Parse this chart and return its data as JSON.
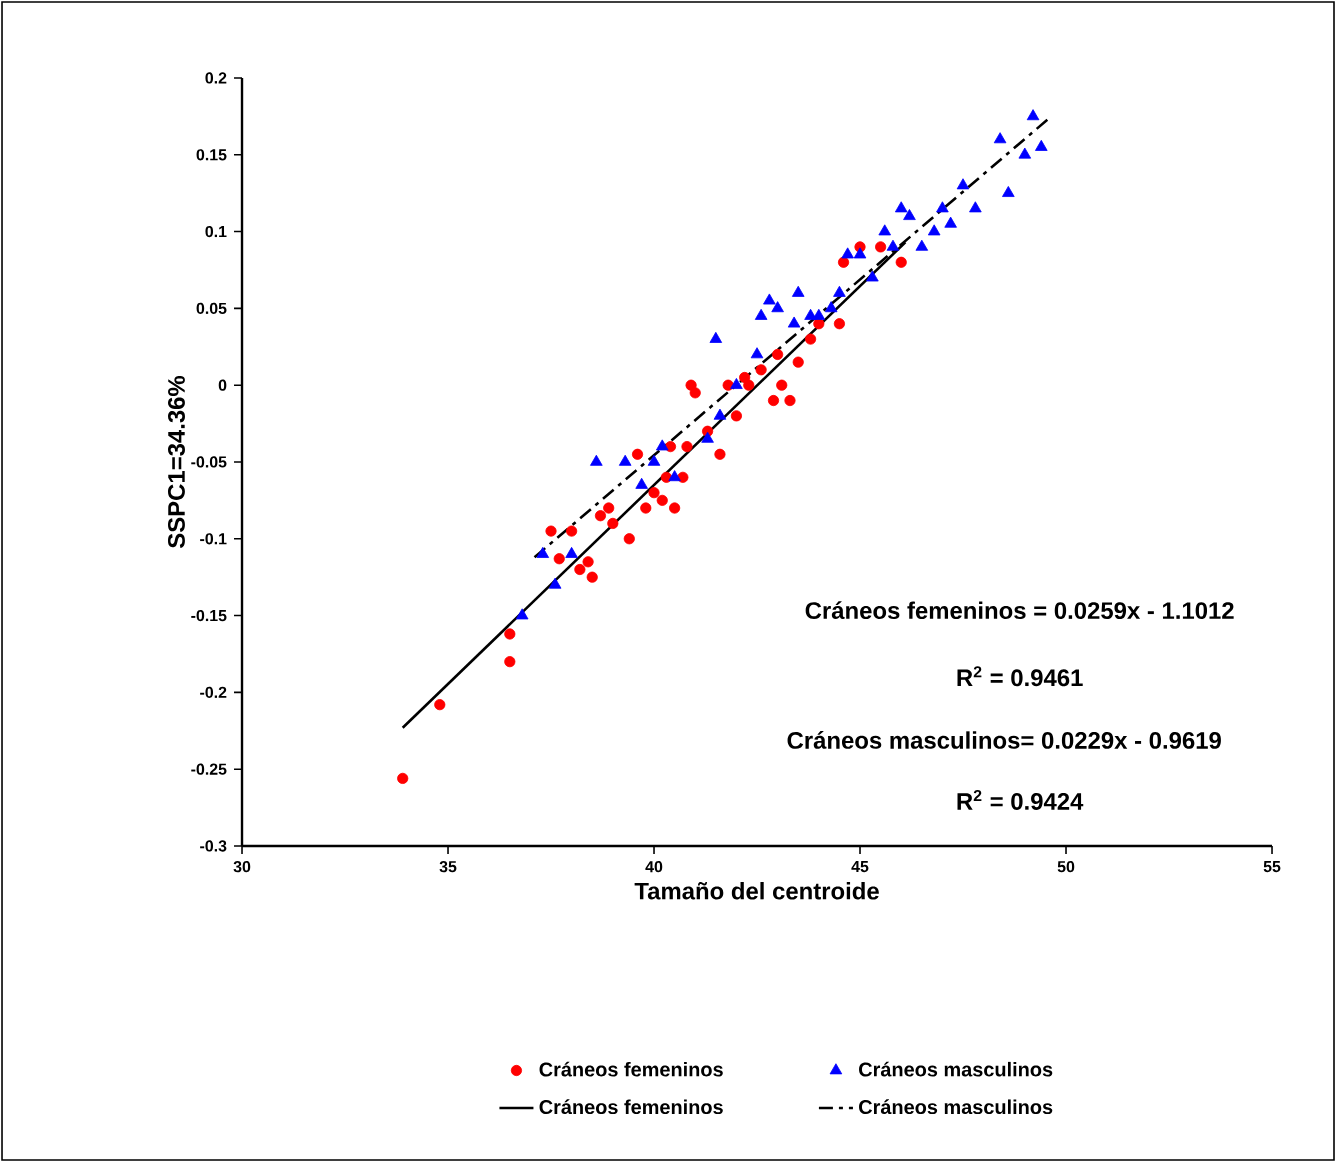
{
  "chart_data": {
    "type": "scatter",
    "xlabel": "Tamaño del centroide",
    "ylabel": "SSPC1=34.36%",
    "xlim": [
      30,
      55
    ],
    "xticks": [
      30,
      35,
      40,
      45,
      50,
      55
    ],
    "ylim": [
      -0.3,
      0.2
    ],
    "yticks": [
      -0.3,
      -0.25,
      -0.2,
      -0.15,
      -0.1,
      -0.05,
      0,
      0.05,
      0.1,
      0.15,
      0.2
    ],
    "grid": false,
    "legend": "bottom",
    "annotations": [
      "Cráneos femeninos = 0.0259x - 1.1012",
      "R$^{2}$ = 0.9461",
      "Cráneos masculinos= 0.0229x - 0.9619",
      "R$^{2}$ = 0.9424"
    ],
    "series": [
      {
        "name": "Cráneos femeninos",
        "type": "scatter",
        "color": "#ff0000",
        "marker": "circle",
        "x": [
          33.9,
          34.8,
          36.5,
          36.5,
          37.5,
          37.7,
          38.0,
          38.2,
          38.4,
          38.5,
          38.7,
          38.9,
          39.0,
          39.4,
          39.6,
          39.8,
          40.0,
          40.2,
          40.3,
          40.5,
          40.7,
          40.8,
          40.9,
          41.0,
          41.3,
          41.6,
          41.8,
          42.0,
          42.2,
          42.6,
          42.9,
          43.0,
          43.3,
          43.5,
          43.8,
          44.0,
          44.5,
          44.6,
          45.0,
          45.5,
          46.0,
          42.3,
          40.4,
          43.1
        ],
        "values": [
          -0.256,
          -0.208,
          -0.162,
          -0.18,
          -0.095,
          -0.113,
          -0.095,
          -0.12,
          -0.115,
          -0.125,
          -0.085,
          -0.08,
          -0.09,
          -0.1,
          -0.045,
          -0.08,
          -0.07,
          -0.075,
          -0.06,
          -0.08,
          -0.06,
          -0.04,
          0.0,
          -0.005,
          -0.03,
          -0.045,
          0.0,
          -0.02,
          0.005,
          0.01,
          -0.01,
          0.02,
          -0.01,
          0.015,
          0.03,
          0.04,
          0.04,
          0.08,
          0.09,
          0.09,
          0.08,
          0.0,
          -0.04,
          0.0
        ]
      },
      {
        "name": "Cráneos masculinos",
        "type": "scatter",
        "color": "#0000ff",
        "marker": "triangle",
        "x": [
          37.3,
          36.8,
          37.6,
          38.0,
          38.6,
          39.3,
          39.7,
          40.2,
          40.0,
          40.5,
          41.3,
          41.5,
          41.6,
          42.0,
          42.5,
          42.6,
          42.8,
          43.0,
          43.4,
          43.5,
          43.8,
          44.0,
          44.3,
          44.5,
          44.7,
          45.0,
          45.3,
          45.6,
          45.8,
          46.0,
          46.2,
          46.5,
          46.8,
          47.0,
          47.2,
          47.5,
          47.8,
          48.4,
          48.6,
          49.0,
          49.2,
          49.4
        ],
        "values": [
          -0.11,
          -0.15,
          -0.13,
          -0.11,
          -0.05,
          -0.05,
          -0.065,
          -0.04,
          -0.05,
          -0.06,
          -0.035,
          0.03,
          -0.02,
          0.0,
          0.02,
          0.045,
          0.055,
          0.05,
          0.04,
          0.06,
          0.045,
          0.045,
          0.05,
          0.06,
          0.085,
          0.085,
          0.07,
          0.1,
          0.09,
          0.115,
          0.11,
          0.09,
          0.1,
          0.115,
          0.105,
          0.13,
          0.115,
          0.16,
          0.125,
          0.15,
          0.175,
          0.155
        ]
      },
      {
        "name": "Cráneos femeninos",
        "type": "line",
        "color": "#000000",
        "marker": "none",
        "line_style": "solid",
        "x": [
          33.9,
          46.1
        ],
        "values": [
          -0.223,
          0.093
        ]
      },
      {
        "name": "Cráneos masculinos",
        "type": "line",
        "color": "#000000",
        "marker": "none",
        "line_style": "dashed",
        "x": [
          37.1,
          49.6
        ],
        "values": [
          -0.112,
          0.174
        ]
      }
    ]
  }
}
